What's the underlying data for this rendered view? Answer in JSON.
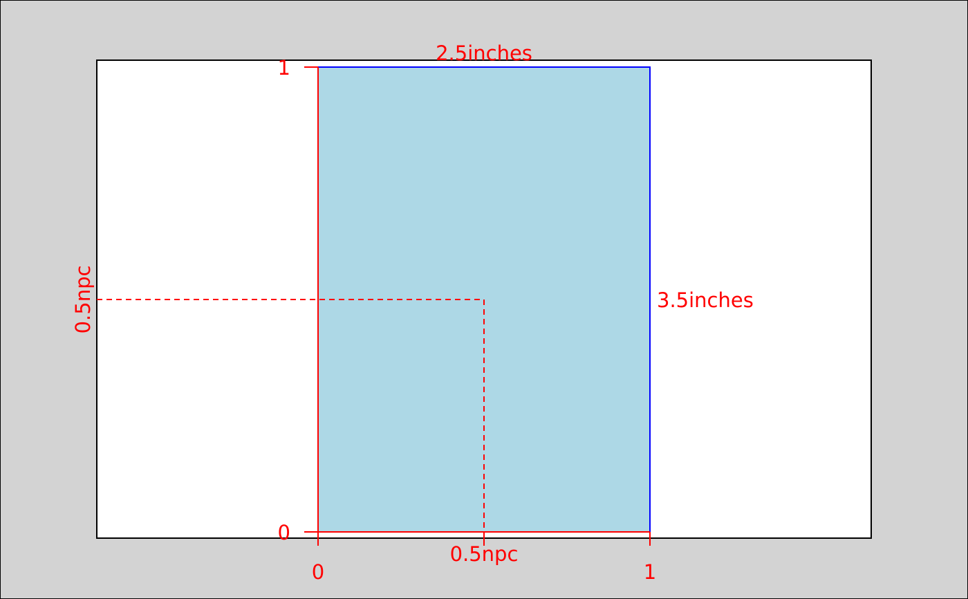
{
  "diagram": {
    "labels": {
      "width_label": "2.5inches",
      "height_label": "3.5inches",
      "x_label": "0.5npc",
      "y_label": "0.5npc",
      "x_tick_0": "0",
      "x_tick_1": "1",
      "y_tick_0": "0",
      "y_tick_1": "1"
    },
    "colors": {
      "page_background": "#d3d3d3",
      "viewport_background": "#ffffff",
      "rect_fill": "#add8e6",
      "rect_stroke": "#0000ff",
      "annotation": "#ff0000"
    }
  }
}
